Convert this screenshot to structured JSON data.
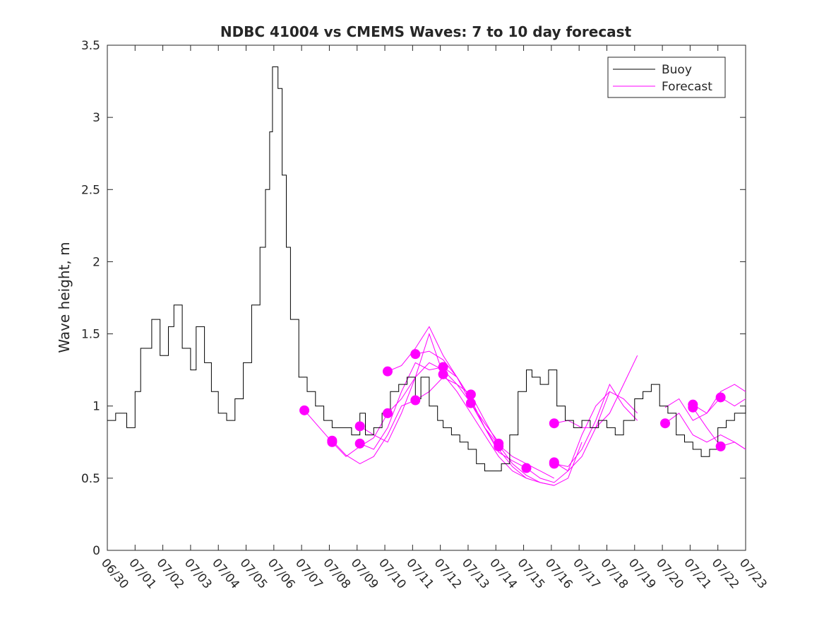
{
  "chart_data": {
    "type": "line",
    "title": "NDBC 41004 vs CMEMS Waves: 7 to 10 day forecast",
    "xlabel": "",
    "ylabel": "Wave height, m",
    "xlim": [
      0,
      23
    ],
    "ylim": [
      0,
      3.5
    ],
    "x_ticks": [
      "06/30",
      "07/01",
      "07/02",
      "07/03",
      "07/04",
      "07/05",
      "07/06",
      "07/07",
      "07/08",
      "07/09",
      "07/10",
      "07/11",
      "07/12",
      "07/13",
      "07/14",
      "07/15",
      "07/16",
      "07/17",
      "07/18",
      "07/19",
      "07/20",
      "07/21",
      "07/22",
      "07/23"
    ],
    "y_ticks": [
      "0",
      "0.5",
      "1",
      "1.5",
      "2",
      "2.5",
      "3",
      "3.5"
    ],
    "grid": false,
    "legend": {
      "position": "top-right",
      "entries": [
        {
          "name": "Buoy",
          "color": "#000000"
        },
        {
          "name": "Forecast",
          "color": "#ff00ff"
        }
      ]
    },
    "series": [
      {
        "name": "Buoy",
        "color": "#000000",
        "x": [
          0,
          0.3,
          0.7,
          1.0,
          1.2,
          1.6,
          1.9,
          2.2,
          2.4,
          2.7,
          3.0,
          3.2,
          3.5,
          3.75,
          4.0,
          4.3,
          4.6,
          4.9,
          5.2,
          5.5,
          5.7,
          5.85,
          5.95,
          6.15,
          6.3,
          6.45,
          6.6,
          6.9,
          7.2,
          7.5,
          7.8,
          8.1,
          8.5,
          8.8,
          9.1,
          9.3,
          9.6,
          9.9,
          10.2,
          10.5,
          10.8,
          11.1,
          11.3,
          11.6,
          11.9,
          12.1,
          12.4,
          12.7,
          13.0,
          13.3,
          13.6,
          13.9,
          14.2,
          14.5,
          14.8,
          15.1,
          15.3,
          15.6,
          15.9,
          16.2,
          16.5,
          16.8,
          17.1,
          17.4,
          17.7,
          18.0,
          18.3,
          18.6,
          19.0,
          19.3,
          19.6,
          19.9,
          20.2,
          20.5,
          20.8,
          21.1,
          21.4,
          21.7,
          22.0,
          22.3,
          22.6,
          23.0
        ],
        "values": [
          0.9,
          0.95,
          0.85,
          1.1,
          1.4,
          1.6,
          1.35,
          1.55,
          1.7,
          1.4,
          1.25,
          1.55,
          1.3,
          1.1,
          0.95,
          0.9,
          1.05,
          1.3,
          1.7,
          2.1,
          2.5,
          2.9,
          3.35,
          3.2,
          2.6,
          2.1,
          1.6,
          1.2,
          1.1,
          1.0,
          0.9,
          0.85,
          0.85,
          0.8,
          0.95,
          0.8,
          0.85,
          0.95,
          1.1,
          1.15,
          1.2,
          1.05,
          1.2,
          1.0,
          0.9,
          0.85,
          0.8,
          0.75,
          0.7,
          0.6,
          0.55,
          0.55,
          0.6,
          0.8,
          1.1,
          1.25,
          1.2,
          1.15,
          1.25,
          1.0,
          0.9,
          0.85,
          0.9,
          0.85,
          0.9,
          0.85,
          0.8,
          0.9,
          1.05,
          1.1,
          1.15,
          1.0,
          0.95,
          0.8,
          0.75,
          0.7,
          0.65,
          0.7,
          0.85,
          0.9,
          0.95,
          1.0
        ]
      }
    ],
    "forecast_series": [
      {
        "name": "Forecast",
        "color": "#ff00ff",
        "x": [
          7.1,
          7.6,
          8.1,
          8.6,
          9.1,
          9.6,
          10.1
        ],
        "values": [
          0.97,
          0.86,
          0.75,
          0.65,
          0.72,
          0.78,
          0.95
        ]
      },
      {
        "name": "Forecast",
        "color": "#ff00ff",
        "x": [
          8.1,
          8.6,
          9.1,
          9.6,
          10.1,
          10.6,
          11.1
        ],
        "values": [
          0.76,
          0.66,
          0.6,
          0.65,
          0.8,
          1.0,
          1.04
        ]
      },
      {
        "name": "Forecast",
        "color": "#ff00ff",
        "x": [
          9.1,
          9.6,
          10.1,
          10.6,
          11.1,
          11.6,
          12.1
        ],
        "values": [
          0.74,
          0.7,
          0.85,
          1.1,
          1.3,
          1.25,
          1.27
        ]
      },
      {
        "name": "Forecast",
        "color": "#ff00ff",
        "x": [
          9.1,
          9.6,
          10.1,
          10.6,
          11.1,
          11.6,
          12.1
        ],
        "values": [
          0.86,
          0.8,
          0.75,
          0.95,
          1.2,
          1.5,
          1.22
        ]
      },
      {
        "name": "Forecast",
        "color": "#ff00ff",
        "x": [
          10.1,
          10.6,
          11.1,
          11.6,
          12.1,
          12.6,
          13.1
        ],
        "values": [
          1.24,
          1.28,
          1.4,
          1.55,
          1.35,
          1.2,
          1.05
        ]
      },
      {
        "name": "Forecast",
        "color": "#ff00ff",
        "x": [
          10.1,
          10.6,
          11.1,
          11.6,
          12.1,
          12.6,
          13.1
        ],
        "values": [
          0.95,
          1.05,
          1.2,
          1.3,
          1.25,
          1.15,
          1.08
        ]
      },
      {
        "name": "Forecast",
        "color": "#ff00ff",
        "x": [
          11.1,
          11.6,
          12.1,
          12.6,
          13.1,
          13.6,
          14.1
        ],
        "values": [
          1.36,
          1.38,
          1.32,
          1.2,
          1.02,
          0.85,
          0.73
        ]
      },
      {
        "name": "Forecast",
        "color": "#ff00ff",
        "x": [
          11.1,
          11.6,
          12.1,
          12.6,
          13.1,
          13.6,
          14.1
        ],
        "values": [
          1.04,
          1.1,
          1.2,
          1.15,
          1.02,
          0.88,
          0.75
        ]
      },
      {
        "name": "Forecast",
        "color": "#ff00ff",
        "x": [
          12.1,
          12.6,
          13.1,
          13.6,
          14.1,
          14.6,
          15.1
        ],
        "values": [
          1.27,
          1.2,
          1.05,
          0.85,
          0.68,
          0.62,
          0.57
        ]
      },
      {
        "name": "Forecast",
        "color": "#ff00ff",
        "x": [
          12.1,
          12.6,
          13.1,
          13.6,
          14.1,
          14.6,
          15.1
        ],
        "values": [
          1.22,
          1.1,
          0.95,
          0.8,
          0.65,
          0.55,
          0.5
        ]
      },
      {
        "name": "Forecast",
        "color": "#ff00ff",
        "x": [
          13.1,
          13.6,
          14.1,
          14.6,
          15.1,
          15.6,
          16.1
        ],
        "values": [
          1.08,
          0.9,
          0.73,
          0.65,
          0.6,
          0.55,
          0.5
        ]
      },
      {
        "name": "Forecast",
        "color": "#ff00ff",
        "x": [
          13.1,
          13.6,
          14.1,
          14.6,
          15.1,
          15.6,
          16.1
        ],
        "values": [
          1.02,
          0.85,
          0.7,
          0.58,
          0.5,
          0.47,
          0.45
        ]
      },
      {
        "name": "Forecast",
        "color": "#ff00ff",
        "x": [
          14.1,
          14.6,
          15.1,
          15.6,
          16.1,
          16.6,
          17.1
        ],
        "values": [
          0.73,
          0.6,
          0.52,
          0.47,
          0.45,
          0.5,
          0.75
        ]
      },
      {
        "name": "Forecast",
        "color": "#ff00ff",
        "x": [
          15.1,
          15.6,
          16.1,
          16.6,
          17.1,
          17.6,
          18.1
        ],
        "values": [
          0.57,
          0.5,
          0.47,
          0.55,
          0.8,
          1.0,
          1.1
        ]
      },
      {
        "name": "Forecast",
        "color": "#ff00ff",
        "x": [
          16.1,
          16.6,
          17.1,
          17.6,
          18.1,
          18.6,
          19.1
        ],
        "values": [
          0.88,
          0.9,
          0.85,
          0.85,
          0.95,
          1.15,
          1.35
        ]
      },
      {
        "name": "Forecast",
        "color": "#ff00ff",
        "x": [
          16.1,
          16.6,
          17.1,
          17.6,
          18.1,
          18.6,
          19.1
        ],
        "values": [
          0.61,
          0.55,
          0.65,
          0.85,
          1.1,
          1.05,
          0.95
        ]
      },
      {
        "name": "Forecast",
        "color": "#ff00ff",
        "x": [
          16.1,
          16.6,
          17.1,
          17.6,
          18.1,
          18.6,
          19.1
        ],
        "values": [
          0.6,
          0.58,
          0.7,
          0.9,
          1.15,
          1.0,
          0.9
        ]
      },
      {
        "name": "Forecast",
        "color": "#ff00ff",
        "x": [
          20.1,
          20.6,
          21.1,
          21.6,
          22.1,
          22.6,
          23.0
        ],
        "values": [
          0.88,
          0.95,
          0.8,
          0.75,
          0.8,
          0.75,
          0.7
        ]
      },
      {
        "name": "Forecast",
        "color": "#ff00ff",
        "x": [
          20.1,
          20.6,
          21.1,
          21.6,
          22.1,
          22.6,
          23.0
        ],
        "values": [
          0.99,
          1.05,
          0.9,
          0.95,
          1.1,
          1.15,
          1.1
        ]
      },
      {
        "name": "Forecast",
        "color": "#ff00ff",
        "x": [
          21.1,
          21.6,
          22.1,
          22.6,
          23.0
        ],
        "values": [
          1.01,
          0.95,
          1.06,
          1.0,
          1.05
        ]
      },
      {
        "name": "Forecast",
        "color": "#ff00ff",
        "x": [
          21.1,
          21.6,
          22.1,
          22.6,
          23.0
        ],
        "values": [
          0.99,
          0.85,
          0.72,
          0.75,
          0.7
        ]
      }
    ],
    "forecast_markers": {
      "name": "Forecast",
      "color": "#ff00ff",
      "x": [
        7.1,
        8.1,
        8.1,
        9.1,
        9.1,
        10.1,
        10.1,
        11.1,
        11.1,
        12.1,
        12.1,
        13.1,
        13.1,
        14.1,
        14.1,
        15.1,
        16.1,
        16.1,
        16.1,
        20.1,
        21.1,
        21.1,
        22.1,
        22.1
      ],
      "values": [
        0.97,
        0.76,
        0.75,
        0.86,
        0.74,
        1.24,
        0.95,
        1.36,
        1.04,
        1.27,
        1.22,
        1.08,
        1.02,
        0.74,
        0.72,
        0.57,
        0.88,
        0.61,
        0.6,
        0.88,
        1.01,
        0.99,
        1.06,
        0.72
      ]
    }
  }
}
